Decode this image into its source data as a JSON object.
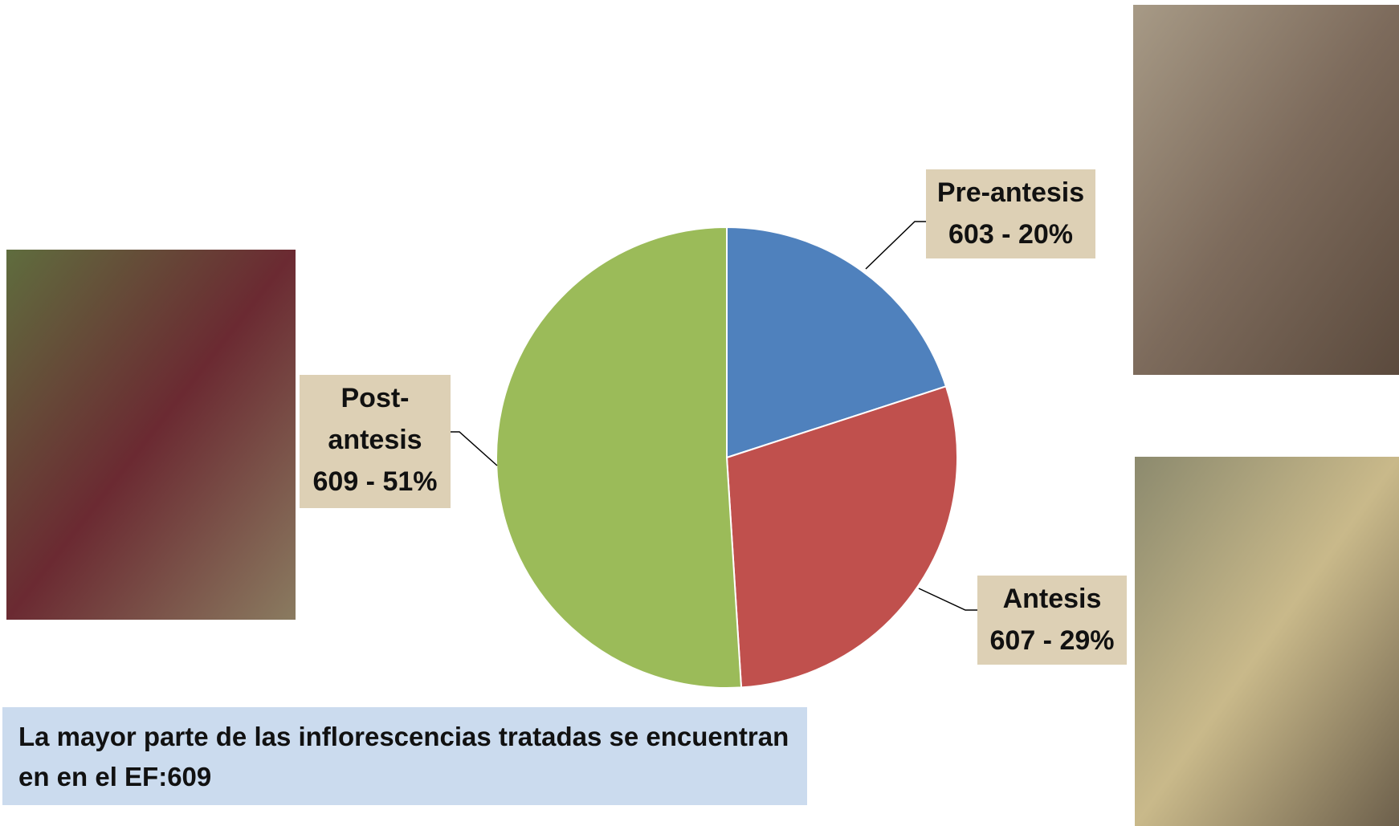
{
  "chart_data": {
    "type": "pie",
    "categories": [
      "Pre-antesis",
      "Antesis",
      "Post-antesis"
    ],
    "values": [
      20,
      29,
      51
    ],
    "value_labels": [
      "603 - 20%",
      "607 - 29%",
      "609 - 51%"
    ],
    "colors": [
      "#4f81bd",
      "#c0504d",
      "#9bbb59"
    ]
  },
  "note": "La mayor parte de las inflorescencias tratadas se encuentran en en el EF:609"
}
